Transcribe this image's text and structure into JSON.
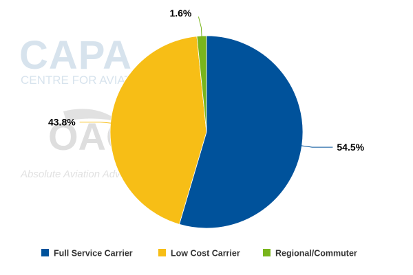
{
  "watermarks": {
    "capa_logo": "CAPA",
    "capa_tagline": "CENTRE FOR AVIATION",
    "oag_logo": "OAG",
    "oag_tagline": "Absolute Aviation Advantage"
  },
  "chart_data": {
    "type": "pie",
    "categories": [
      "Full Service Carrier",
      "Low Cost Carrier",
      "Regional/Commuter"
    ],
    "values": [
      54.5,
      43.8,
      1.6
    ],
    "data_labels": [
      "54.5%",
      "43.8%",
      "1.6%"
    ],
    "colors": [
      "#00529b",
      "#f7be16",
      "#79b51c"
    ],
    "legend": {
      "position": "bottom",
      "entries": [
        "Full Service Carrier",
        "Low Cost Carrier",
        "Regional/Commuter"
      ]
    }
  }
}
